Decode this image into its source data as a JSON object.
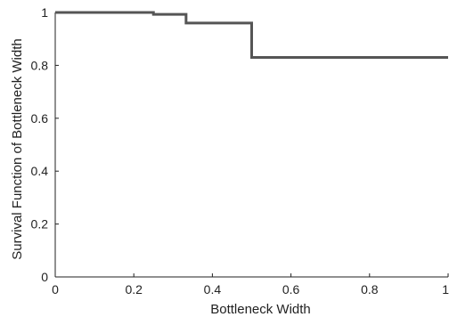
{
  "chart_data": {
    "type": "line",
    "title": "",
    "xlabel": "Bottleneck Width",
    "ylabel": "Survival Function of Bottleneck Width",
    "xlim": [
      0,
      1
    ],
    "ylim": [
      0,
      1
    ],
    "x_ticks": [
      0,
      0.2,
      0.4,
      0.6,
      0.8,
      1
    ],
    "x_tick_labels": [
      "0",
      "0.2",
      "0.4",
      "0.6",
      "0.8",
      "1"
    ],
    "y_ticks": [
      0,
      0.2,
      0.4,
      0.6,
      0.8,
      1
    ],
    "y_tick_labels": [
      "0",
      "0.2",
      "0.4",
      "0.6",
      "0.8",
      "1"
    ],
    "grid": false,
    "legend": "none",
    "step": true,
    "series": [
      {
        "x": [
          0,
          0.25,
          0.333,
          0.5,
          1
        ],
        "y": [
          1,
          0.993,
          0.96,
          0.83,
          0.83
        ],
        "color": "#555555"
      }
    ]
  }
}
